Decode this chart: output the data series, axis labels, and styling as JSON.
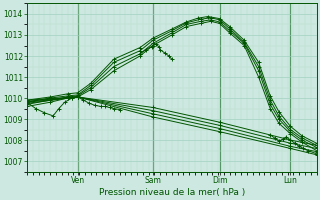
{
  "title": "Pression niveau de la mer( hPa )",
  "bg_color": "#cce8e0",
  "line_color": "#005500",
  "grid_color_major": "#99ccbb",
  "grid_color_minor": "#bbddcc",
  "ylim": [
    1006.5,
    1014.5
  ],
  "yticks": [
    1007,
    1008,
    1009,
    1010,
    1011,
    1012,
    1013,
    1014
  ],
  "day_labels": [
    "Ven",
    "Sam",
    "Dim",
    "Lun"
  ],
  "day_positions": [
    0.175,
    0.435,
    0.665,
    0.91
  ],
  "xlim": [
    0.0,
    1.0
  ],
  "lines": [
    {
      "x": [
        0.0,
        0.08,
        0.14,
        0.175,
        0.22,
        0.3,
        0.39,
        0.435,
        0.5,
        0.55,
        0.6,
        0.635,
        0.665,
        0.7,
        0.75,
        0.8,
        0.84,
        0.87,
        0.91,
        0.95,
        1.0
      ],
      "y": [
        1009.6,
        1009.8,
        1010.0,
        1010.05,
        1010.4,
        1011.3,
        1012.0,
        1012.5,
        1013.0,
        1013.4,
        1013.55,
        1013.65,
        1013.55,
        1013.1,
        1012.5,
        1011.0,
        1009.5,
        1008.8,
        1008.3,
        1007.9,
        1007.5
      ]
    },
    {
      "x": [
        0.0,
        0.08,
        0.14,
        0.175,
        0.22,
        0.3,
        0.39,
        0.435,
        0.5,
        0.55,
        0.6,
        0.635,
        0.665,
        0.7,
        0.75,
        0.8,
        0.84,
        0.87,
        0.91,
        0.95,
        1.0
      ],
      "y": [
        1009.7,
        1009.9,
        1010.05,
        1010.1,
        1010.5,
        1011.5,
        1012.1,
        1012.6,
        1013.1,
        1013.5,
        1013.65,
        1013.72,
        1013.62,
        1013.2,
        1012.6,
        1011.3,
        1009.7,
        1009.0,
        1008.4,
        1008.0,
        1007.65
      ]
    },
    {
      "x": [
        0.0,
        0.08,
        0.14,
        0.175,
        0.22,
        0.3,
        0.39,
        0.435,
        0.5,
        0.55,
        0.6,
        0.635,
        0.665,
        0.7,
        0.75,
        0.8,
        0.84,
        0.87,
        0.91,
        0.95,
        1.0
      ],
      "y": [
        1009.8,
        1010.0,
        1010.1,
        1010.15,
        1010.6,
        1011.7,
        1012.25,
        1012.75,
        1013.2,
        1013.58,
        1013.75,
        1013.82,
        1013.72,
        1013.3,
        1012.65,
        1011.5,
        1009.9,
        1009.15,
        1008.5,
        1008.1,
        1007.75
      ]
    },
    {
      "x": [
        0.0,
        0.08,
        0.14,
        0.175,
        0.22,
        0.3,
        0.39,
        0.435,
        0.5,
        0.55,
        0.59,
        0.625,
        0.665,
        0.7,
        0.75,
        0.8,
        0.84,
        0.87,
        0.91,
        0.95,
        1.0
      ],
      "y": [
        1009.9,
        1010.05,
        1010.2,
        1010.25,
        1010.7,
        1011.85,
        1012.4,
        1012.85,
        1013.28,
        1013.62,
        1013.8,
        1013.88,
        1013.78,
        1013.4,
        1012.75,
        1011.7,
        1010.1,
        1009.35,
        1008.65,
        1008.2,
        1007.85
      ]
    },
    {
      "x": [
        0.0,
        0.175,
        0.435,
        0.665,
        0.91,
        1.0
      ],
      "y": [
        1009.9,
        1010.05,
        1009.55,
        1008.85,
        1008.0,
        1007.75
      ]
    },
    {
      "x": [
        0.0,
        0.175,
        0.435,
        0.665,
        0.91,
        1.0
      ],
      "y": [
        1009.85,
        1010.05,
        1009.4,
        1008.7,
        1007.85,
        1007.6
      ]
    },
    {
      "x": [
        0.0,
        0.175,
        0.435,
        0.665,
        0.91,
        1.0
      ],
      "y": [
        1009.8,
        1010.05,
        1009.25,
        1008.55,
        1007.7,
        1007.45
      ]
    },
    {
      "x": [
        0.0,
        0.175,
        0.435,
        0.665,
        0.91,
        1.0
      ],
      "y": [
        1009.75,
        1010.05,
        1009.1,
        1008.4,
        1007.6,
        1007.3
      ]
    },
    {
      "x": [
        0.0,
        0.03,
        0.06,
        0.09,
        0.11,
        0.13,
        0.155,
        0.175
      ],
      "y": [
        1009.8,
        1009.5,
        1009.3,
        1009.15,
        1009.5,
        1009.8,
        1010.0,
        1010.05
      ]
    },
    {
      "x": [
        0.155,
        0.175,
        0.195,
        0.215,
        0.235,
        0.255,
        0.27,
        0.285,
        0.3,
        0.32
      ],
      "y": [
        1010.0,
        1010.05,
        1009.9,
        1009.75,
        1009.65,
        1009.6,
        1009.6,
        1009.55,
        1009.5,
        1009.45
      ]
    },
    {
      "x": [
        0.39,
        0.41,
        0.43,
        0.435,
        0.445,
        0.455,
        0.46,
        0.475,
        0.49,
        0.5
      ],
      "y": [
        1012.1,
        1012.3,
        1012.45,
        1012.5,
        1012.55,
        1012.45,
        1012.3,
        1012.15,
        1012.0,
        1011.85
      ]
    },
    {
      "x": [
        0.84,
        0.855,
        0.87,
        0.885,
        0.895,
        0.91,
        0.925,
        0.94,
        0.955,
        0.97,
        1.0
      ],
      "y": [
        1008.25,
        1008.1,
        1007.95,
        1008.05,
        1008.15,
        1008.0,
        1007.85,
        1007.7,
        1007.6,
        1007.5,
        1007.35
      ]
    }
  ]
}
